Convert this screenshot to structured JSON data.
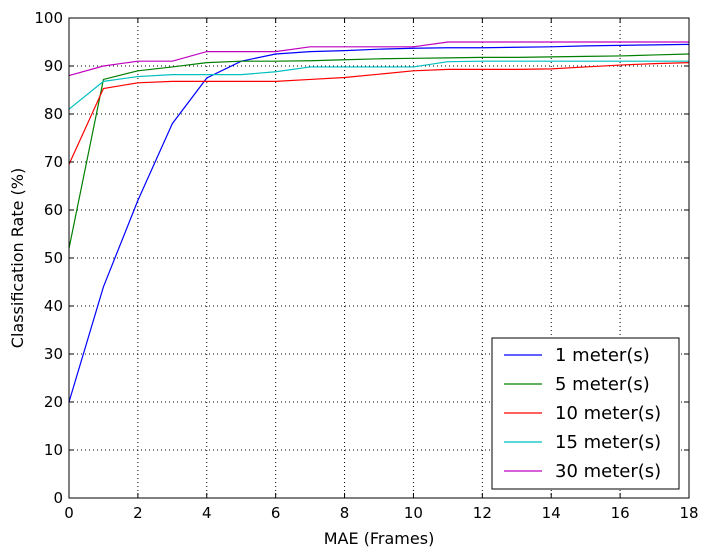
{
  "chart_data": {
    "type": "line",
    "title": "",
    "xlabel": "MAE (Frames)",
    "ylabel": "Classification Rate (%)",
    "xlim": [
      0,
      18
    ],
    "ylim": [
      0,
      100
    ],
    "xticks": [
      0,
      2,
      4,
      6,
      8,
      10,
      12,
      14,
      16,
      18
    ],
    "yticks": [
      0,
      10,
      20,
      30,
      40,
      50,
      60,
      70,
      80,
      90,
      100
    ],
    "grid": true,
    "legend_position": "bottom-right",
    "x": [
      0,
      1,
      2,
      3,
      4,
      5,
      6,
      7,
      8,
      9,
      10,
      11,
      12,
      13,
      14,
      15,
      16,
      17,
      18
    ],
    "series": [
      {
        "name": "1 meter(s)",
        "color": "#0000ff",
        "values": [
          20,
          44,
          62,
          78,
          87.5,
          91,
          92.5,
          93,
          93.2,
          93.5,
          93.7,
          93.8,
          93.8,
          93.9,
          94,
          94.2,
          94.3,
          94.4,
          94.5
        ]
      },
      {
        "name": "5 meter(s)",
        "color": "#008000",
        "values": [
          52,
          87.2,
          89,
          89.8,
          90.7,
          91,
          91,
          91.1,
          91.3,
          91.5,
          91.6,
          91.7,
          91.8,
          91.8,
          91.9,
          92,
          92.1,
          92.3,
          92.5
        ]
      },
      {
        "name": "10 meter(s)",
        "color": "#ff0000",
        "values": [
          69.5,
          85.3,
          86.5,
          86.8,
          86.8,
          86.8,
          86.8,
          87.2,
          87.6,
          88.3,
          89,
          89.3,
          89.3,
          89.3,
          89.4,
          89.8,
          90.2,
          90.5,
          90.7
        ]
      },
      {
        "name": "15 meter(s)",
        "color": "#00bfbf",
        "values": [
          81,
          86.8,
          87.8,
          88.2,
          88.2,
          88.2,
          88.8,
          89.8,
          89.8,
          89.8,
          89.8,
          90.9,
          91,
          91,
          91,
          91,
          91,
          91,
          91
        ]
      },
      {
        "name": "30 meter(s)",
        "color": "#bf00bf",
        "values": [
          88,
          90,
          91,
          91,
          93,
          93,
          93,
          94,
          94,
          94,
          94,
          95,
          95,
          95,
          95,
          95,
          95,
          95,
          95
        ]
      }
    ]
  }
}
